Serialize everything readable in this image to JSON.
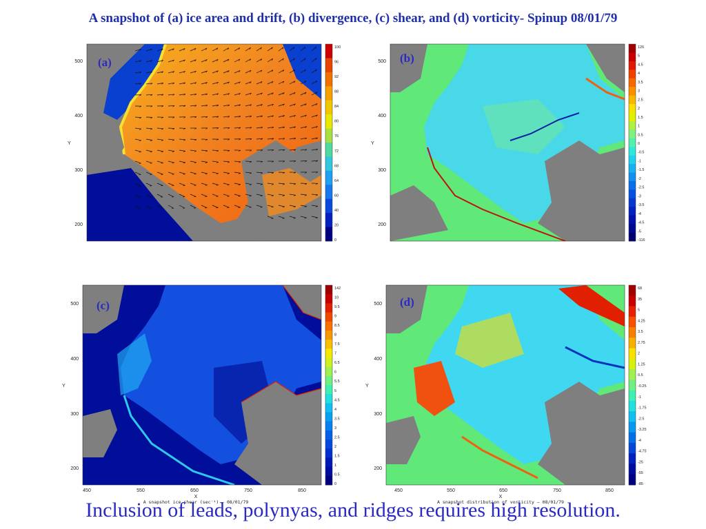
{
  "title": "A snapshot of (a) ice area and drift, (b) divergence, (c) shear, and (d) vorticity- Spinup 08/01/79",
  "caption": "Inclusion of leads, polynyas, and ridges requires high resolution.",
  "panels": [
    {
      "id": "a",
      "label": "(a)",
      "field": "ice area and drift",
      "y_ticks": [
        "500",
        "400",
        "300",
        "200"
      ],
      "y_axis_label": "Y",
      "x_ticks": [],
      "x_axis_label": "",
      "footnote": "",
      "colorbar_ticks": [
        "100",
        "96",
        "92",
        "88",
        "84",
        "80",
        "76",
        "72",
        "68",
        "64",
        "60",
        "40",
        "20",
        "0"
      ],
      "colorbar_colors": [
        "#cc0000",
        "#e84400",
        "#f07000",
        "#f8a000",
        "#f0c800",
        "#e8e800",
        "#a8e040",
        "#50d8a0",
        "#30c8e0",
        "#20a0f0",
        "#1878f0",
        "#0c48e0",
        "#0420c0",
        "#000080"
      ],
      "palette": {
        "ocean": "#000e9a",
        "land": "#7f7f7f",
        "ice": "#f07818",
        "ice_edge": "#f8c020",
        "drift_arrows": "#101010"
      }
    },
    {
      "id": "b",
      "label": "(b)",
      "field": "divergence",
      "y_ticks": [
        "500",
        "400",
        "300",
        "200"
      ],
      "y_axis_label": "Y",
      "x_ticks": [],
      "x_axis_label": "",
      "footnote": "",
      "colorbar_ticks": [
        "126",
        "5",
        "4.5",
        "4",
        "3.5",
        "3",
        "2.5",
        "2",
        "1.5",
        "1",
        "0.5",
        "0",
        "-0.5",
        "-1",
        "-1.5",
        "-2",
        "-2.5",
        "-3",
        "-3.5",
        "-4",
        "-4.5",
        "-5",
        "-116"
      ],
      "colorbar_colors": [
        "#a00000",
        "#c80000",
        "#e01800",
        "#f04000",
        "#f86800",
        "#f89000",
        "#f8b800",
        "#f8e000",
        "#e0f000",
        "#b0f040",
        "#80f080",
        "#50f0b0",
        "#30e8d8",
        "#20d0f0",
        "#18b0f0",
        "#1090f0",
        "#0870e8",
        "#0450e0",
        "#0438d0",
        "#0020c0",
        "#0010a8",
        "#000890",
        "#000070"
      ],
      "palette": {
        "ocean": "#60e878",
        "land": "#7f7f7f",
        "ice": "#38d8f0"
      }
    },
    {
      "id": "c",
      "label": "(c)",
      "field": "shear",
      "y_ticks": [
        "500",
        "400",
        "300",
        "200"
      ],
      "y_axis_label": "Y",
      "x_ticks": [
        "450",
        "550",
        "650",
        "750",
        "850"
      ],
      "x_axis_label": "X",
      "footnote": "A snapshot ice shear (sec⁻¹) – 08/01/79",
      "colorbar_ticks": [
        "142",
        "10",
        "9.5",
        "9",
        "8.5",
        "8",
        "7.5",
        "7",
        "6.5",
        "6",
        "5.5",
        "5",
        "4.5",
        "4",
        "3.5",
        "3",
        "2.5",
        "2",
        "1.5",
        "1",
        "0.5",
        "0"
      ],
      "colorbar_colors": [
        "#a00000",
        "#c80000",
        "#e02000",
        "#f04800",
        "#f87000",
        "#f89800",
        "#f8c000",
        "#f8e800",
        "#d0f020",
        "#a0f050",
        "#70f080",
        "#40f0b0",
        "#20e0e0",
        "#10c0f0",
        "#08a0f0",
        "#0880f0",
        "#0460e8",
        "#0448e0",
        "#0030d0",
        "#0018b8",
        "#000ca0",
        "#000080"
      ],
      "palette": {
        "ocean": "#000e9a",
        "land": "#7f7f7f",
        "ice": "#0a3cd8"
      }
    },
    {
      "id": "d",
      "label": "(d)",
      "field": "vorticity",
      "y_ticks": [
        "500",
        "400",
        "300",
        "200"
      ],
      "y_axis_label": "Y",
      "x_ticks": [
        "450",
        "550",
        "650",
        "750",
        "850"
      ],
      "x_axis_label": "X",
      "footnote": "A snapshot distribution of vorticity – 08/01/79",
      "colorbar_ticks": [
        "68",
        "35",
        "5",
        "4.25",
        "3.5",
        "2.75",
        "2",
        "1.25",
        "0.5",
        "-0.25",
        "-1",
        "-1.75",
        "-2.5",
        "-3.25",
        "-4",
        "-4.75",
        "-25",
        "-55",
        "-85"
      ],
      "colorbar_colors": [
        "#a00000",
        "#c80000",
        "#e82000",
        "#f85000",
        "#f88000",
        "#f8b000",
        "#f8e000",
        "#d8f010",
        "#a0f050",
        "#70f080",
        "#40f0b0",
        "#20e0e0",
        "#10c0f0",
        "#0898f0",
        "#0470e8",
        "#0448d8",
        "#0020c0",
        "#000ca0",
        "#000080"
      ],
      "palette": {
        "ocean": "#60e878",
        "land": "#7f7f7f",
        "ice": "#40d8f0"
      }
    }
  ]
}
